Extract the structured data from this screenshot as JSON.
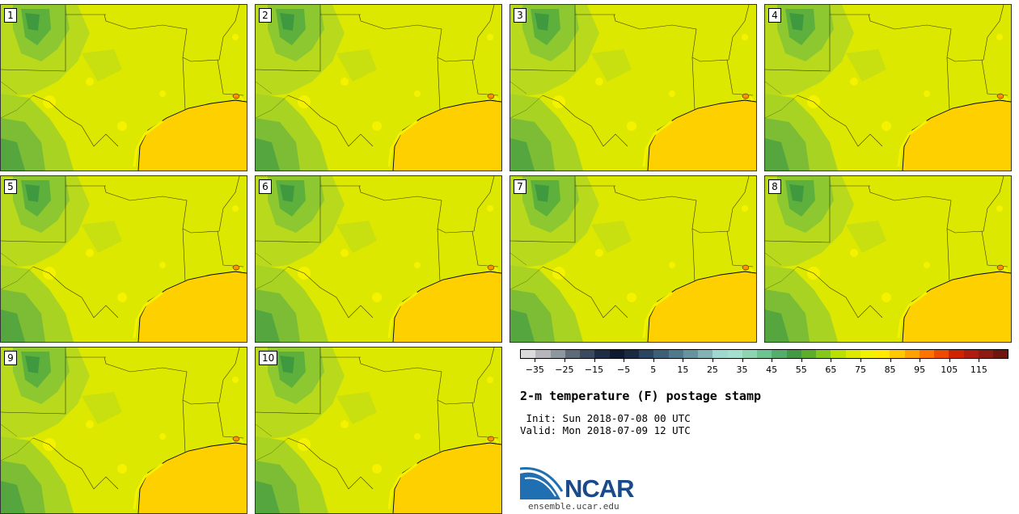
{
  "panels": [
    {
      "label": "1"
    },
    {
      "label": "2"
    },
    {
      "label": "3"
    },
    {
      "label": "4"
    },
    {
      "label": "5"
    },
    {
      "label": "6"
    },
    {
      "label": "7"
    },
    {
      "label": "8"
    },
    {
      "label": "9"
    },
    {
      "label": "10"
    }
  ],
  "colorbar": {
    "colors": [
      "#dcdcdc",
      "#b5b5bb",
      "#8e96a0",
      "#5e6a78",
      "#3b4a5e",
      "#1f2d44",
      "#0f1a30",
      "#1a2a40",
      "#2b4560",
      "#3d6078",
      "#4f7a8c",
      "#65949f",
      "#82b2b4",
      "#9ed8cf",
      "#a3e0d0",
      "#8fd4b0",
      "#6ec490",
      "#54ad6a",
      "#449a43",
      "#5cae2a",
      "#86c81a",
      "#b8e000",
      "#dce800",
      "#f0f200",
      "#ffea00",
      "#ffc800",
      "#ffa200",
      "#ff7400",
      "#f04a00",
      "#d02400",
      "#b01c10",
      "#8f1a12",
      "#6e160e"
    ],
    "tick_labels": [
      "−35",
      "−25",
      "−15",
      "−5",
      "5",
      "15",
      "25",
      "35",
      "45",
      "55",
      "65",
      "75",
      "85",
      "95",
      "105",
      "115"
    ]
  },
  "title": "2-m temperature (F) postage stamp",
  "init": " Init: Sun 2018-07-08 00 UTC",
  "valid": "Valid: Mon 2018-07-09 12 UTC",
  "logo": {
    "word": "NCAR",
    "url": "ensemble.ucar.edu"
  }
}
